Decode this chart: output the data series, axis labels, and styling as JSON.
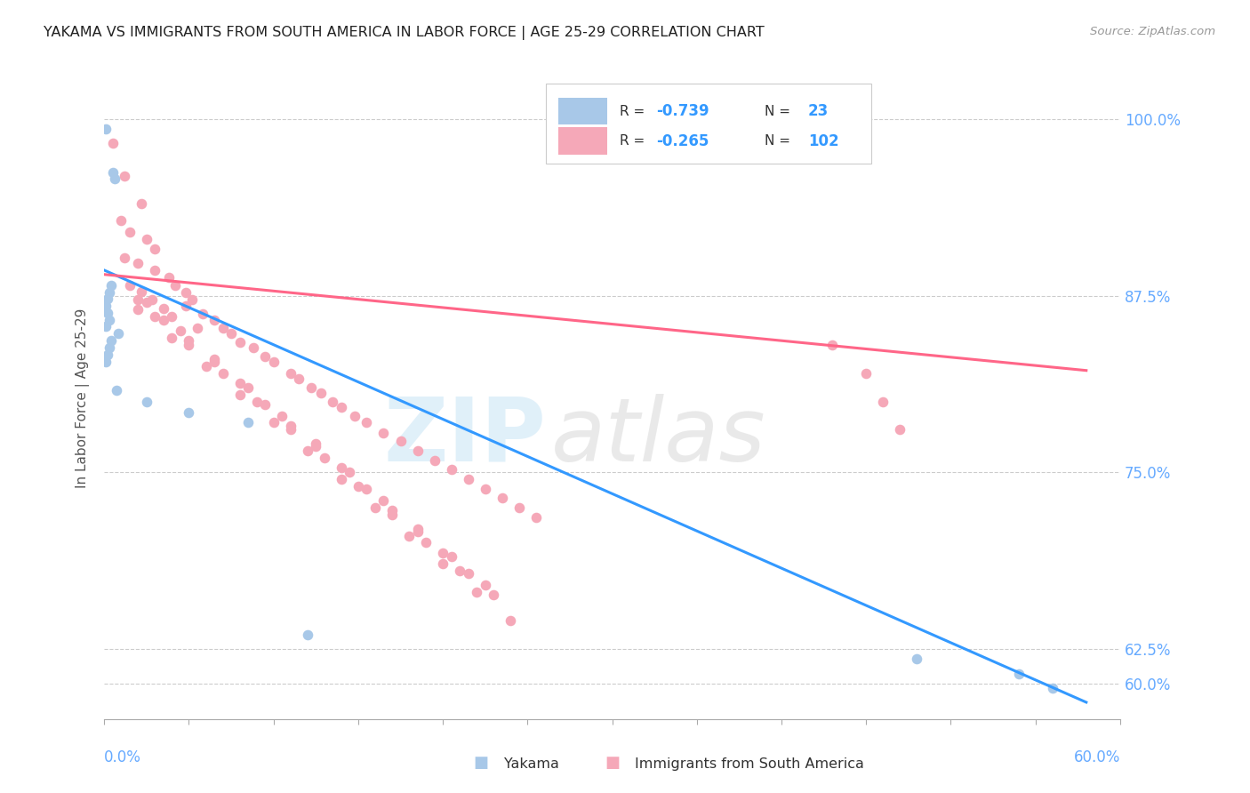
{
  "title": "YAKAMA VS IMMIGRANTS FROM SOUTH AMERICA IN LABOR FORCE | AGE 25-29 CORRELATION CHART",
  "source": "Source: ZipAtlas.com",
  "ylabel": "In Labor Force | Age 25-29",
  "yticks_labels": [
    "60.0%",
    "62.5%",
    "75.0%",
    "87.5%",
    "100.0%"
  ],
  "ytick_vals": [
    0.6,
    0.625,
    0.75,
    0.875,
    1.0
  ],
  "xmin": 0.0,
  "xmax": 0.6,
  "ymin": 0.575,
  "ymax": 1.03,
  "blue_color": "#a8c8e8",
  "pink_color": "#f5a8b8",
  "blue_line_color": "#3399ff",
  "pink_line_color": "#ff6688",
  "legend_box_edge": "#cccccc",
  "grid_color": "#cccccc",
  "title_color": "#222222",
  "source_color": "#999999",
  "axis_label_color": "#555555",
  "right_tick_color": "#66aaff",
  "bottom_tick_color": "#66aaff",
  "yakama_x": [
    0.001,
    0.005,
    0.006,
    0.004,
    0.003,
    0.002,
    0.001,
    0.002,
    0.003,
    0.001,
    0.008,
    0.004,
    0.003,
    0.002,
    0.001,
    0.007,
    0.025,
    0.05,
    0.085,
    0.12,
    0.48,
    0.54,
    0.56
  ],
  "yakama_y": [
    0.993,
    0.962,
    0.958,
    0.882,
    0.877,
    0.873,
    0.868,
    0.863,
    0.858,
    0.853,
    0.848,
    0.843,
    0.838,
    0.833,
    0.828,
    0.808,
    0.8,
    0.792,
    0.785,
    0.635,
    0.618,
    0.607,
    0.597
  ],
  "sa_x": [
    0.005,
    0.012,
    0.022,
    0.01,
    0.015,
    0.025,
    0.03,
    0.012,
    0.02,
    0.03,
    0.038,
    0.042,
    0.048,
    0.052,
    0.015,
    0.022,
    0.028,
    0.035,
    0.04,
    0.055,
    0.048,
    0.058,
    0.065,
    0.07,
    0.075,
    0.08,
    0.088,
    0.095,
    0.1,
    0.11,
    0.115,
    0.122,
    0.128,
    0.135,
    0.14,
    0.148,
    0.155,
    0.165,
    0.175,
    0.185,
    0.195,
    0.205,
    0.215,
    0.225,
    0.235,
    0.245,
    0.255,
    0.02,
    0.035,
    0.05,
    0.065,
    0.08,
    0.095,
    0.11,
    0.125,
    0.14,
    0.155,
    0.17,
    0.185,
    0.2,
    0.215,
    0.23,
    0.02,
    0.04,
    0.06,
    0.08,
    0.1,
    0.12,
    0.14,
    0.16,
    0.18,
    0.2,
    0.22,
    0.24,
    0.025,
    0.045,
    0.065,
    0.085,
    0.105,
    0.125,
    0.145,
    0.165,
    0.185,
    0.205,
    0.225,
    0.03,
    0.05,
    0.07,
    0.09,
    0.11,
    0.13,
    0.15,
    0.17,
    0.19,
    0.21,
    0.43,
    0.45,
    0.46,
    0.47
  ],
  "sa_y": [
    0.983,
    0.96,
    0.94,
    0.928,
    0.92,
    0.915,
    0.908,
    0.902,
    0.898,
    0.893,
    0.888,
    0.882,
    0.877,
    0.872,
    0.882,
    0.878,
    0.872,
    0.866,
    0.86,
    0.852,
    0.868,
    0.862,
    0.858,
    0.852,
    0.848,
    0.842,
    0.838,
    0.832,
    0.828,
    0.82,
    0.816,
    0.81,
    0.806,
    0.8,
    0.796,
    0.79,
    0.785,
    0.778,
    0.772,
    0.765,
    0.758,
    0.752,
    0.745,
    0.738,
    0.732,
    0.725,
    0.718,
    0.872,
    0.858,
    0.843,
    0.828,
    0.813,
    0.798,
    0.783,
    0.768,
    0.753,
    0.738,
    0.723,
    0.708,
    0.693,
    0.678,
    0.663,
    0.865,
    0.845,
    0.825,
    0.805,
    0.785,
    0.765,
    0.745,
    0.725,
    0.705,
    0.685,
    0.665,
    0.645,
    0.87,
    0.85,
    0.83,
    0.81,
    0.79,
    0.77,
    0.75,
    0.73,
    0.71,
    0.69,
    0.67,
    0.86,
    0.84,
    0.82,
    0.8,
    0.78,
    0.76,
    0.74,
    0.72,
    0.7,
    0.68,
    0.84,
    0.82,
    0.8,
    0.78
  ],
  "blue_trend_x": [
    0.0,
    0.58
  ],
  "blue_trend_y": [
    0.893,
    0.587
  ],
  "pink_trend_x": [
    0.0,
    0.58
  ],
  "pink_trend_y": [
    0.89,
    0.822
  ]
}
